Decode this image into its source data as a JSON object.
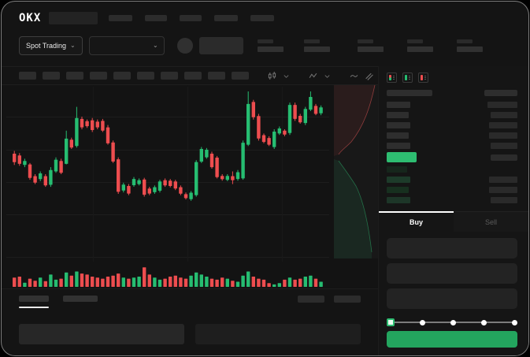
{
  "colors": {
    "up": "#26bd71",
    "down": "#ed4d4f",
    "accent_green": "#23a55e",
    "price_highlight": "#2ebd71",
    "bid_row_greens": [
      "#16261c",
      "#1d3b2a",
      "#17301f",
      "#1d3628"
    ]
  },
  "header": {
    "logo_text": "OKX",
    "nav_item_widths": [
      30,
      28,
      28,
      30,
      30
    ]
  },
  "subheader": {
    "market_selector_label": "Spot Trading",
    "chevron": "⌄",
    "left_stat_count": 2,
    "right_stat_count": 3
  },
  "toolbar": {
    "timeframe_count": 10,
    "icons": [
      "chart-type-icon",
      "chevron-down-icon",
      "indicator-icon",
      "chevron-down-icon",
      "line-tool-icon",
      "compare-icon",
      "camera-icon",
      "settings-gear-icon",
      "fullscreen-icon"
    ]
  },
  "order_book": {
    "view_icons": [
      "book-split-icon",
      "book-bids-icon",
      "book-asks-icon"
    ],
    "header_widths": [
      58,
      42
    ],
    "asks": [
      {
        "pw": 30,
        "aw": 38
      },
      {
        "pw": 28,
        "aw": 34
      },
      {
        "pw": 30,
        "aw": 36
      },
      {
        "pw": 28,
        "aw": 36
      },
      {
        "pw": 30,
        "aw": 34
      }
    ],
    "price_row_amount_width": 34,
    "bids": [
      {
        "pw": 26,
        "aw": 0
      },
      {
        "pw": 30,
        "aw": 36
      },
      {
        "pw": 28,
        "aw": 36
      },
      {
        "pw": 30,
        "aw": 34
      }
    ]
  },
  "trade_panel": {
    "tabs": [
      {
        "label": "Buy"
      },
      {
        "label": "Sell"
      }
    ],
    "field_count": 3,
    "slider_stops": 5,
    "slider_active_index": 0
  },
  "bottom_panel": {
    "tab_widths": [
      38,
      44
    ],
    "right_block_widths": [
      34,
      34
    ],
    "input_count": 2
  },
  "chart_data": {
    "type": "candlestick",
    "note_units": "normalized 0-100 price scale (no axis labels visible)",
    "candles": [
      [
        45.9,
        48.3,
        36.1,
        38.6
      ],
      [
        44.4,
        46.4,
        35.4,
        37.1
      ],
      [
        36.1,
        41.5,
        34.2,
        39.5
      ],
      [
        36.6,
        37.8,
        23.2,
        24.9
      ],
      [
        26.4,
        28.1,
        19.5,
        20.7
      ],
      [
        23.9,
        30.5,
        22.0,
        28.8
      ],
      [
        26.4,
        28.1,
        17.1,
        18.3
      ],
      [
        18.8,
        34.2,
        17.1,
        31.7
      ],
      [
        30.5,
        42.7,
        29.3,
        40.7
      ],
      [
        39.5,
        41.5,
        28.1,
        29.3
      ],
      [
        37.1,
        65.9,
        36.6,
        59.0
      ],
      [
        58.1,
        59.8,
        50.0,
        51.2
      ],
      [
        52.5,
        86.6,
        51.2,
        76.9
      ],
      [
        76.1,
        78.1,
        67.1,
        68.8
      ],
      [
        74.2,
        75.6,
        68.3,
        69.8
      ],
      [
        74.9,
        76.9,
        64.7,
        66.4
      ],
      [
        73.7,
        75.6,
        67.1,
        68.8
      ],
      [
        74.4,
        76.1,
        64.7,
        65.9
      ],
      [
        68.8,
        70.8,
        53.7,
        54.9
      ],
      [
        55.6,
        57.3,
        37.8,
        39.0
      ],
      [
        41.0,
        42.7,
        11.0,
        12.7
      ],
      [
        13.9,
        20.7,
        12.2,
        19.0
      ],
      [
        17.8,
        19.5,
        9.8,
        11.2
      ],
      [
        18.5,
        25.6,
        17.1,
        23.9
      ],
      [
        19.5,
        24.4,
        18.3,
        22.9
      ],
      [
        23.4,
        24.9,
        8.5,
        10.2
      ],
      [
        15.6,
        17.1,
        9.8,
        11.2
      ],
      [
        12.4,
        18.3,
        11.0,
        16.8
      ],
      [
        13.7,
        23.2,
        12.2,
        21.7
      ],
      [
        22.9,
        24.4,
        17.1,
        18.3
      ],
      [
        22.4,
        23.9,
        16.6,
        17.8
      ],
      [
        21.7,
        23.2,
        14.2,
        15.6
      ],
      [
        16.8,
        18.3,
        9.8,
        11.2
      ],
      [
        10.7,
        12.2,
        6.1,
        7.3
      ],
      [
        6.3,
        13.4,
        4.9,
        12.0
      ],
      [
        9.8,
        40.3,
        8.5,
        38.6
      ],
      [
        39.0,
        51.7,
        37.8,
        50.0
      ],
      [
        42.7,
        50.8,
        41.5,
        49.3
      ],
      [
        45.9,
        47.6,
        32.9,
        34.2
      ],
      [
        42.5,
        43.9,
        24.4,
        25.6
      ],
      [
        26.6,
        28.1,
        22.4,
        23.7
      ],
      [
        23.2,
        28.1,
        22.0,
        26.6
      ],
      [
        26.4,
        30.5,
        19.5,
        22.9
      ],
      [
        23.9,
        31.7,
        22.4,
        29.8
      ],
      [
        24.4,
        57.3,
        23.2,
        55.4
      ],
      [
        53.7,
        100,
        52.5,
        89.1
      ],
      [
        90.8,
        92.7,
        75.6,
        77.6
      ],
      [
        78.6,
        80.5,
        57.3,
        59.0
      ],
      [
        62.0,
        63.4,
        54.9,
        56.1
      ],
      [
        59.5,
        61.0,
        52.5,
        53.7
      ],
      [
        51.7,
        67.1,
        50.0,
        65.1
      ],
      [
        63.4,
        69.5,
        62.2,
        67.8
      ],
      [
        65.9,
        67.1,
        61.0,
        62.5
      ],
      [
        63.9,
        90.3,
        62.2,
        88.3
      ],
      [
        88.3,
        90.3,
        74.4,
        76.1
      ],
      [
        78.8,
        80.5,
        72.0,
        73.2
      ],
      [
        72.5,
        86.6,
        70.8,
        84.7
      ],
      [
        84.2,
        100,
        82.9,
        95.2
      ],
      [
        87.4,
        89.1,
        79.3,
        80.5
      ],
      [
        81.0,
        87.8,
        79.3,
        86.1
      ]
    ],
    "volume": [
      45,
      50,
      20,
      40,
      30,
      45,
      28,
      60,
      35,
      40,
      70,
      55,
      75,
      65,
      60,
      50,
      45,
      40,
      50,
      55,
      65,
      45,
      40,
      45,
      50,
      95,
      60,
      45,
      35,
      40,
      50,
      55,
      45,
      40,
      55,
      70,
      60,
      50,
      40,
      35,
      45,
      40,
      30,
      25,
      55,
      75,
      50,
      40,
      35,
      18,
      12,
      18,
      35,
      45,
      35,
      40,
      50,
      55,
      40,
      25
    ],
    "depth_overlay": {
      "asks_side": "top",
      "bids_side": "bottom"
    }
  }
}
